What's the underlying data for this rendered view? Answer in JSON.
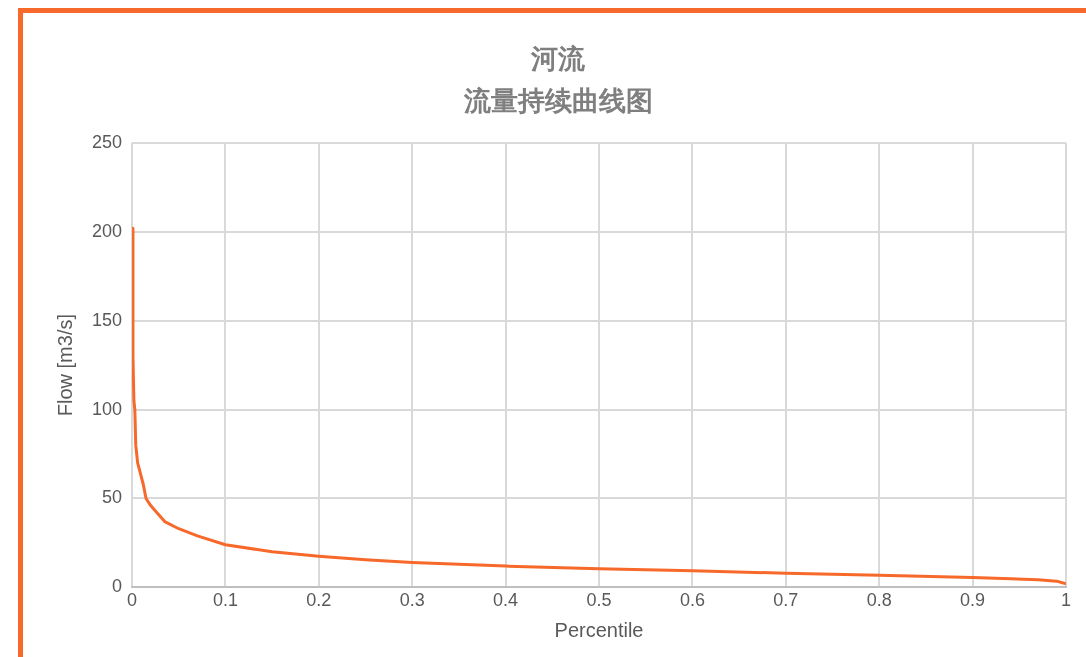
{
  "chart_data": {
    "type": "line",
    "title": "河流",
    "subtitle": "流量持续曲线图",
    "xlabel": "Percentile",
    "ylabel": "Flow [m3/s]",
    "series": [
      {
        "color": "#f7692a",
        "x": [
          0,
          0.001,
          0.002,
          0.003,
          0.004,
          0.006,
          0.01,
          0.012,
          0.015,
          0.02,
          0.03,
          0.035,
          0.05,
          0.07,
          0.1,
          0.15,
          0.2,
          0.25,
          0.3,
          0.4,
          0.5,
          0.6,
          0.7,
          0.8,
          0.9,
          0.97,
          0.99,
          1
        ],
        "values": [
          202,
          130,
          105,
          100,
          80,
          70,
          62,
          58,
          50,
          46,
          40,
          37,
          33,
          29,
          24,
          20,
          17.5,
          15.5,
          14,
          12,
          10.5,
          9.3,
          8,
          6.8,
          5.5,
          4.3,
          3.5,
          2
        ]
      }
    ],
    "xlim": [
      0,
      1
    ],
    "xticks": [
      0,
      0.1,
      0.2,
      0.3,
      0.4,
      0.5,
      0.6,
      0.7,
      0.8,
      0.9,
      1
    ],
    "ylim": [
      0,
      250
    ],
    "yticks": [
      0,
      50,
      100,
      150,
      200,
      250
    ],
    "grid": true,
    "legend": false,
    "marker": "none",
    "line_style": "solid"
  }
}
